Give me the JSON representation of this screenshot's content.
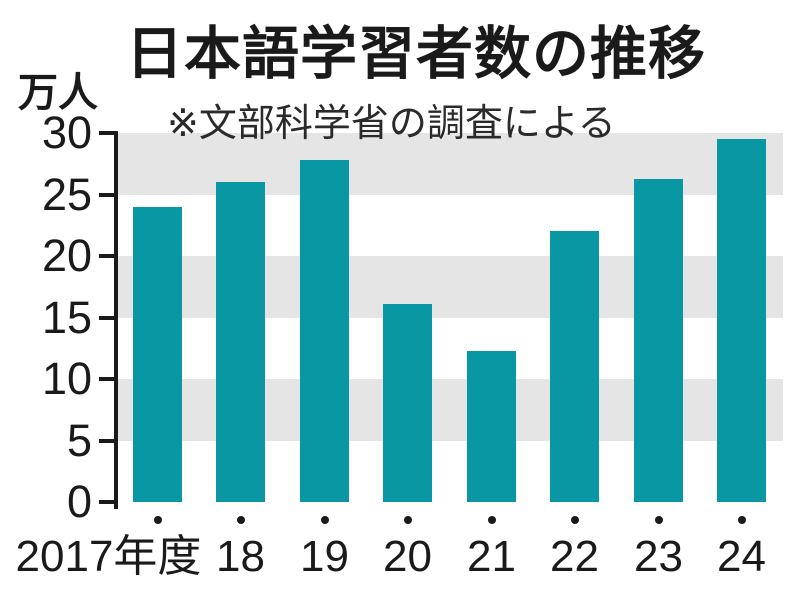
{
  "header": {
    "title": "日本語学習者数の推移",
    "unit_label": "万人",
    "source_note": "※文部科学省の調査による"
  },
  "chart_data": {
    "type": "bar",
    "title": "日本語学習者数の推移",
    "subtitle": "※文部科学省の調査による",
    "categories": [
      "2017年度",
      "18",
      "19",
      "20",
      "21",
      "22",
      "23",
      "24"
    ],
    "values": [
      24.0,
      26.0,
      27.8,
      16.1,
      12.3,
      22.0,
      26.3,
      29.5
    ],
    "xlabel": "年度",
    "ylabel": "万人",
    "ylim": [
      0,
      30
    ],
    "yticks": [
      0,
      5,
      10,
      15,
      20,
      25,
      30
    ],
    "band_ranges": [
      [
        25,
        30
      ],
      [
        15,
        20
      ],
      [
        5,
        10
      ]
    ],
    "grid": false,
    "legend": "none",
    "colors": {
      "bar": "#0a97a4",
      "band": "#e5e5e5",
      "axis": "#1a1a1a",
      "text": "#1a1a1a",
      "background": "#ffffff"
    }
  }
}
